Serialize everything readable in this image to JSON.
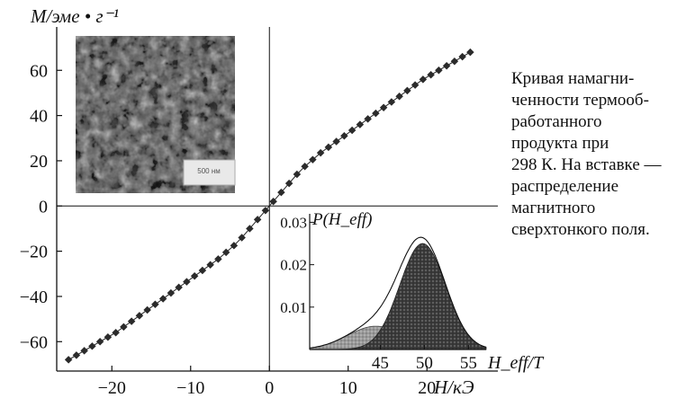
{
  "chart_data": [
    {
      "type": "scatter",
      "xlabel": "H/кЭ",
      "ylabel": "M/эме • г⁻¹",
      "xlim": [
        -27,
        29
      ],
      "ylim": [
        -73,
        76
      ],
      "xticks": [
        -20,
        -10,
        0,
        10,
        20
      ],
      "yticks": [
        -60,
        -40,
        -20,
        0,
        20,
        40,
        60
      ],
      "xtick_labels": [
        "−20",
        "−10",
        "0",
        "10",
        "20"
      ],
      "ytick_labels": [
        "−60",
        "−40",
        "−20",
        "0",
        "20",
        "40",
        "60"
      ],
      "series": [
        {
          "x": [
            -25.5,
            -24.5,
            -23.5,
            -22.5,
            -21.5,
            -20.5,
            -19.5,
            -18.5,
            -17.5,
            -16.5,
            -15.5,
            -14.5,
            -13.5,
            -12.5,
            -11.5,
            -10.5,
            -9.5,
            -8.5,
            -7.5,
            -6.5,
            -5.5,
            -4.5,
            -3.5,
            -2.5,
            -1.5,
            -0.5,
            0.5,
            1.5,
            2.5,
            3.5,
            4.5,
            5.5,
            6.5,
            7.5,
            8.5,
            9.5,
            10.5,
            11.5,
            12.5,
            13.5,
            14.5,
            15.5,
            16.5,
            17.5,
            18.5,
            19.5,
            20.5,
            21.5,
            22.5,
            23.5,
            24.5,
            25.5
          ],
          "y": [
            -68,
            -66,
            -64,
            -62,
            -60,
            -58,
            -56,
            -53.5,
            -51,
            -48.5,
            -46,
            -43.5,
            -41,
            -38.5,
            -36,
            -33.5,
            -31,
            -28.5,
            -26,
            -23.5,
            -20.5,
            -17.5,
            -14,
            -10,
            -6,
            -2,
            2,
            6,
            10,
            14,
            17.5,
            20.5,
            23.5,
            26,
            28.5,
            31,
            33.5,
            36,
            38.5,
            41,
            43.5,
            46,
            48.5,
            51,
            53.5,
            56,
            58,
            60,
            62,
            64,
            66,
            68
          ]
        }
      ]
    },
    {
      "type": "area",
      "xlabel": "H_eff/T",
      "ylabel": "P(H_eff)",
      "xlim": [
        37,
        57
      ],
      "ylim": [
        0,
        0.032
      ],
      "xticks": [
        45,
        50,
        55
      ],
      "yticks": [
        0.01,
        0.02,
        0.03
      ],
      "xtick_labels": [
        "45",
        "50",
        "55"
      ],
      "ytick_labels": [
        "0.01",
        "0.02",
        "0.03"
      ],
      "components": [
        {
          "center": 44.5,
          "width": 3.2,
          "height": 0.0055
        },
        {
          "center": 49.8,
          "width": 2.6,
          "height": 0.025
        }
      ]
    }
  ],
  "inset_photo": {
    "scale_bar_text": "500 нм"
  },
  "caption": "Кривая намагни-\nченности термооб-\nработанного\nпродукта при\n298 К. На вставке —\nраспределение\nмагнитного\nсверхтонкого поля."
}
